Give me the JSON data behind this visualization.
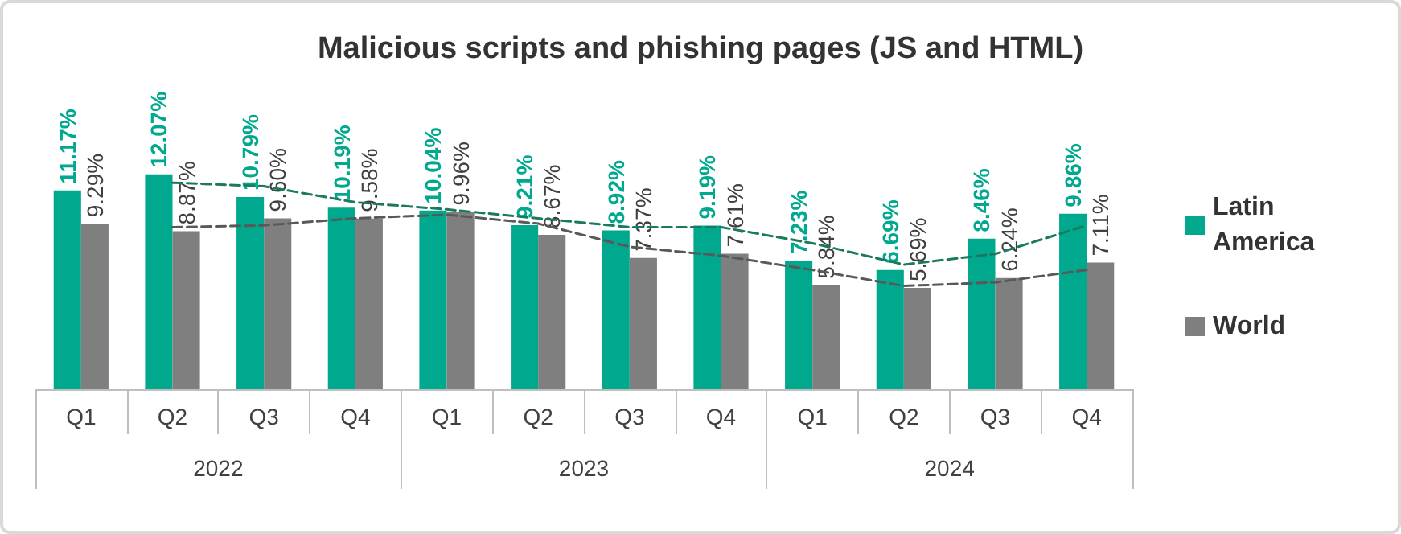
{
  "chart_data": {
    "type": "bar",
    "title": "Malicious scripts and phishing pages (JS and HTML)",
    "categories": [
      "Q1",
      "Q2",
      "Q3",
      "Q4",
      "Q1",
      "Q2",
      "Q3",
      "Q4",
      "Q1",
      "Q2",
      "Q3",
      "Q4"
    ],
    "annotations": [
      "2022",
      "2023",
      "2024"
    ],
    "series": [
      {
        "name": "Latin America",
        "color": "#00a88e",
        "values": [
          11.17,
          12.07,
          10.79,
          10.19,
          10.04,
          9.21,
          8.92,
          9.19,
          7.23,
          6.69,
          8.46,
          9.86
        ],
        "value_labels": [
          "11.17%",
          "12.07%",
          "10.79%",
          "10.19%",
          "10.04%",
          "9.21%",
          "8.92%",
          "9.19%",
          "7.23%",
          "6.69%",
          "8.46%",
          "9.86%"
        ]
      },
      {
        "name": "World",
        "color": "#7f7f7f",
        "values": [
          9.29,
          8.87,
          9.6,
          9.58,
          9.96,
          8.67,
          7.37,
          7.61,
          5.84,
          5.69,
          6.24,
          7.11
        ],
        "value_labels": [
          "9.29%",
          "8.87%",
          "9.60%",
          "9.58%",
          "9.96%",
          "8.67%",
          "7.37%",
          "7.61%",
          "5.84%",
          "5.69%",
          "6.24%",
          "7.11%"
        ]
      },
      {
        "type": "line",
        "color": "#1a7a5e",
        "line_style": "dashed",
        "marker": "none",
        "values": [
          null,
          11.6,
          11.4,
          10.5,
          10.1,
          9.6,
          9.1,
          9.1,
          8.2,
          7.0,
          7.6,
          9.2
        ]
      },
      {
        "type": "line",
        "color": "#595959",
        "line_style": "dashed",
        "marker": "none",
        "values": [
          null,
          9.1,
          9.2,
          9.6,
          9.8,
          9.3,
          8.0,
          7.5,
          6.7,
          5.8,
          6.0,
          6.7
        ]
      }
    ],
    "legend": "right"
  }
}
